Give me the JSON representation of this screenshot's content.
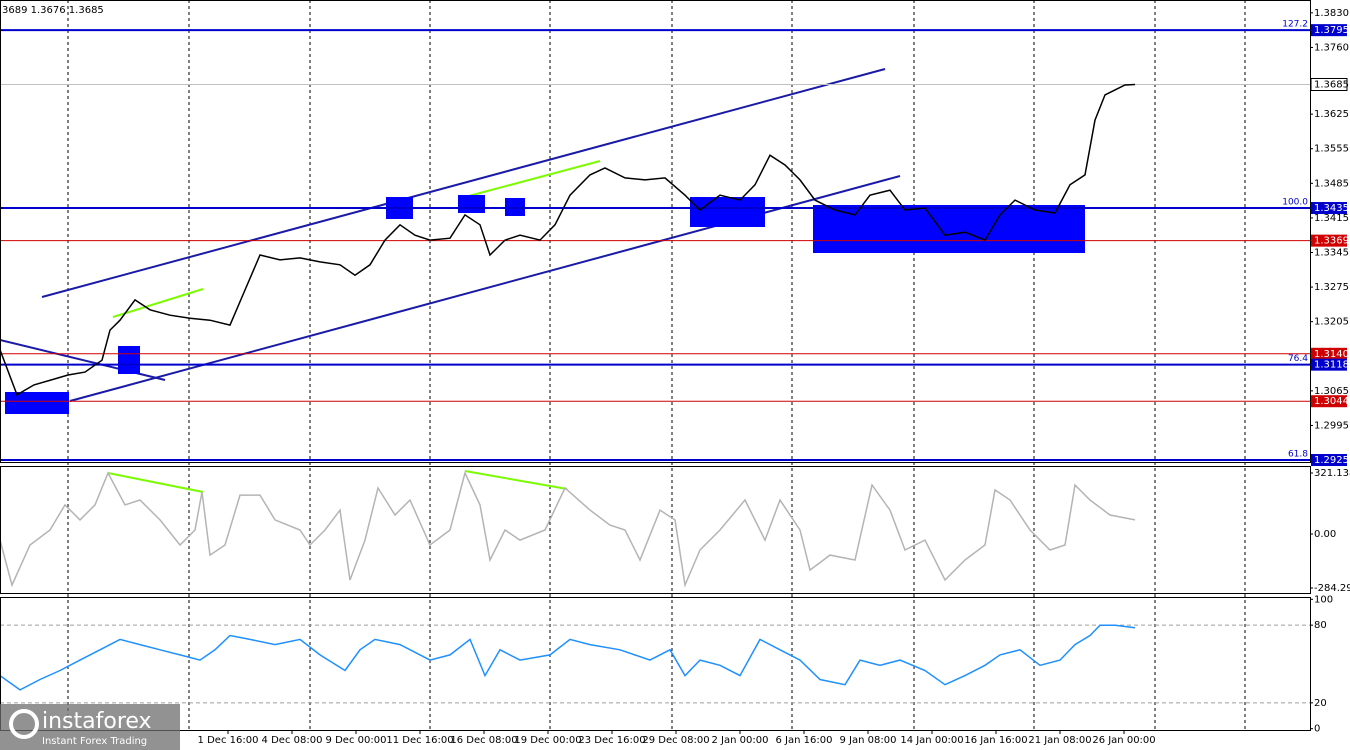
{
  "logo": {
    "name": "instaforex",
    "tagline": "Instant Forex Trading"
  },
  "chart_data": [
    {
      "type": "line",
      "header": "3689 1.3676 1.3685",
      "color": "#000000",
      "xlim": [
        0,
        327.5
      ],
      "ylim": [
        1.2921,
        1.3856
      ],
      "x": [
        0,
        4.25,
        8.5,
        12.75,
        17,
        21.25,
        25.5,
        27.5,
        30,
        33.75,
        37.5,
        42.5,
        47.5,
        52.5,
        57.5,
        61.25,
        65,
        70,
        75,
        80,
        85,
        88.75,
        92.5,
        96.25,
        100,
        103.75,
        107.5,
        112.5,
        116.25,
        120,
        122.5,
        126.25,
        130,
        135,
        138.75,
        142.5,
        147.5,
        151.25,
        156.25,
        161.25,
        166.25,
        171.25,
        175,
        180,
        185,
        188.75,
        192.5,
        196.25,
        200,
        203.75,
        208.75,
        213.75,
        217.5,
        222.5,
        226.25,
        231.25,
        236.25,
        241.25,
        246.25,
        250,
        253.75,
        258.75,
        263.75,
        267.5,
        271.25,
        273.75,
        276.25,
        278.75,
        281.25,
        283.75
      ],
      "values": [
        1.3148,
        1.3057,
        1.3077,
        1.3087,
        1.3097,
        1.3103,
        1.3127,
        1.3188,
        1.3208,
        1.3249,
        1.3229,
        1.3218,
        1.3212,
        1.3208,
        1.3198,
        1.3269,
        1.334,
        1.333,
        1.3334,
        1.3326,
        1.332,
        1.3299,
        1.332,
        1.337,
        1.3401,
        1.338,
        1.337,
        1.3374,
        1.3421,
        1.3401,
        1.334,
        1.337,
        1.338,
        1.337,
        1.3401,
        1.3461,
        1.3502,
        1.3516,
        1.3496,
        1.3492,
        1.3496,
        1.3461,
        1.3431,
        1.3461,
        1.3451,
        1.3482,
        1.3542,
        1.3522,
        1.3492,
        1.3451,
        1.3431,
        1.3421,
        1.3461,
        1.3471,
        1.3431,
        1.3435,
        1.338,
        1.3386,
        1.337,
        1.3421,
        1.3451,
        1.3431,
        1.3425,
        1.3482,
        1.3502,
        1.3613,
        1.3664,
        1.3674,
        1.3684,
        1.3685
      ],
      "yticks": [
        {
          "value": 1.383,
          "label": "1.3830"
        },
        {
          "value": 1.376,
          "label": "1.3760"
        },
        {
          "value": 1.3625,
          "label": "1.3625"
        },
        {
          "value": 1.3555,
          "label": "1.3555"
        },
        {
          "value": 1.3485,
          "label": "1.3485"
        },
        {
          "value": 1.3415,
          "label": "1.3415"
        },
        {
          "value": 1.3345,
          "label": "1.3345"
        },
        {
          "value": 1.3275,
          "label": "1.3275"
        },
        {
          "value": 1.3205,
          "label": "1.3205"
        },
        {
          "value": 1.3065,
          "label": "1.3065"
        },
        {
          "value": 1.2995,
          "label": "1.2995"
        }
      ],
      "xticks": [
        {
          "value": 57,
          "label": "1 Dec 16:00"
        },
        {
          "value": 73,
          "label": "4 Dec 08:00"
        },
        {
          "value": 89,
          "label": "9 Dec 00:00"
        },
        {
          "value": 105,
          "label": "11 Dec 16:00"
        },
        {
          "value": 121,
          "label": "16 Dec 08:00"
        },
        {
          "value": 137,
          "label": "19 Dec 00:00"
        },
        {
          "value": 153,
          "label": "23 Dec 16:00"
        },
        {
          "value": 169,
          "label": "29 Dec 08:00"
        },
        {
          "value": 185,
          "label": "2 Jan 00:00"
        },
        {
          "value": 201,
          "label": "6 Jan 16:00"
        },
        {
          "value": 217,
          "label": "9 Jan 08:00"
        },
        {
          "value": 233,
          "label": "14 Jan 00:00"
        },
        {
          "value": 249,
          "label": "16 Jan 16:00"
        },
        {
          "value": 265,
          "label": "21 Jan 08:00"
        },
        {
          "value": 281,
          "label": "26 Jan 00:00"
        }
      ],
      "levels": [
        {
          "value": 1.3795,
          "label": "1.3795",
          "fib": "127.2",
          "color": "#0000cd"
        },
        {
          "value": 1.3435,
          "label": "1.3435",
          "fib": "100.0",
          "color": "#0000cd"
        },
        {
          "value": 1.3369,
          "label": "1.3369",
          "color": "#d00000"
        },
        {
          "value": 1.314,
          "label": "1.3140",
          "color": "#d00000"
        },
        {
          "value": 1.3118,
          "label": "1.3118",
          "fib": "76.4",
          "color": "#0000cd"
        },
        {
          "value": 1.3044,
          "label": "1.3044",
          "color": "#d00000"
        },
        {
          "value": 1.2925,
          "label": "1.2925",
          "fib": "61.8",
          "color": "#0000cd"
        }
      ],
      "current_price": {
        "value": 1.3685,
        "label": "1.3685"
      }
    },
    {
      "type": "line",
      "color": "#b4b4b4",
      "xlim": [
        0,
        327.5
      ],
      "ylim": [
        -310.6,
        358.0
      ],
      "x": [
        0,
        3,
        7.5,
        12.5,
        16.25,
        20,
        23.75,
        27,
        31.25,
        35,
        40,
        45,
        48.75,
        50.5,
        52.5,
        56.25,
        60,
        65,
        68.75,
        75,
        77.5,
        81.25,
        85,
        87.5,
        91.25,
        94.5,
        98.75,
        102.5,
        107.5,
        112.5,
        116.25,
        120,
        122.5,
        126.25,
        130,
        136.25,
        141.25,
        147.5,
        152.5,
        156.25,
        160,
        165,
        168.75,
        171.25,
        175,
        180,
        186.25,
        191.25,
        195,
        200,
        202.5,
        207.5,
        213.75,
        218,
        222.5,
        226.25,
        231.25,
        236.25,
        241.25,
        246.25,
        248.75,
        252.5,
        257.5,
        262.5,
        266.25,
        268.75,
        272.5,
        277.5,
        283.75
      ],
      "values": [
        -32,
        -269,
        -58,
        21,
        153,
        74,
        153,
        321.1,
        153,
        179,
        74,
        -58,
        21,
        221,
        -111,
        -58,
        205,
        205,
        74,
        21,
        -58,
        21,
        126,
        -242,
        -32,
        242,
        100,
        179,
        -58,
        21,
        321.1,
        153,
        -137,
        21,
        -32,
        21,
        242,
        126,
        47,
        21,
        -137,
        126,
        74,
        -269,
        -84,
        21,
        179,
        -32,
        179,
        21,
        -190,
        -111,
        -137,
        258,
        126,
        -84,
        -32,
        -242,
        -137,
        -58,
        232,
        179,
        21,
        -84,
        -58,
        258,
        179,
        100,
        74
      ],
      "yticks": [
        321.1386,
        {
          "value": 0,
          "label": "0.00"
        },
        {
          "value": -284.29,
          "label": "-284.2900"
        }
      ]
    },
    {
      "type": "line",
      "color": "#1e90ff",
      "xlim": [
        0,
        327.5
      ],
      "ylim": [
        -1,
        101
      ],
      "x": [
        0,
        5,
        10,
        15,
        20,
        25,
        30,
        35,
        40,
        45,
        50,
        53.75,
        57.5,
        62.5,
        68.75,
        75,
        80,
        86.25,
        90,
        93.75,
        100,
        107.5,
        112.5,
        117.5,
        121.25,
        125,
        130,
        137.5,
        142.5,
        147.5,
        155,
        162.5,
        167.5,
        171.25,
        175,
        180,
        185,
        190,
        195,
        200,
        205,
        211.25,
        215,
        220,
        225,
        231.25,
        236.25,
        241.25,
        246.25,
        250,
        255,
        260,
        265,
        268.75,
        272.5,
        275,
        278.75,
        283.75
      ],
      "values": [
        41,
        30,
        38,
        45,
        53,
        61,
        69,
        65,
        61,
        57,
        53,
        61,
        72,
        69,
        65,
        69,
        57,
        45,
        61,
        69,
        65,
        53,
        57,
        69,
        41,
        61,
        53,
        57,
        69,
        65,
        61,
        53,
        61,
        41,
        53,
        49,
        41,
        69,
        61,
        53,
        38,
        34,
        53,
        49,
        53,
        45,
        34,
        41,
        49,
        57,
        61,
        49,
        53,
        65,
        72,
        80,
        80,
        78
      ],
      "yticks": [
        100,
        80,
        20,
        0
      ],
      "levels": [
        80,
        20
      ]
    }
  ]
}
